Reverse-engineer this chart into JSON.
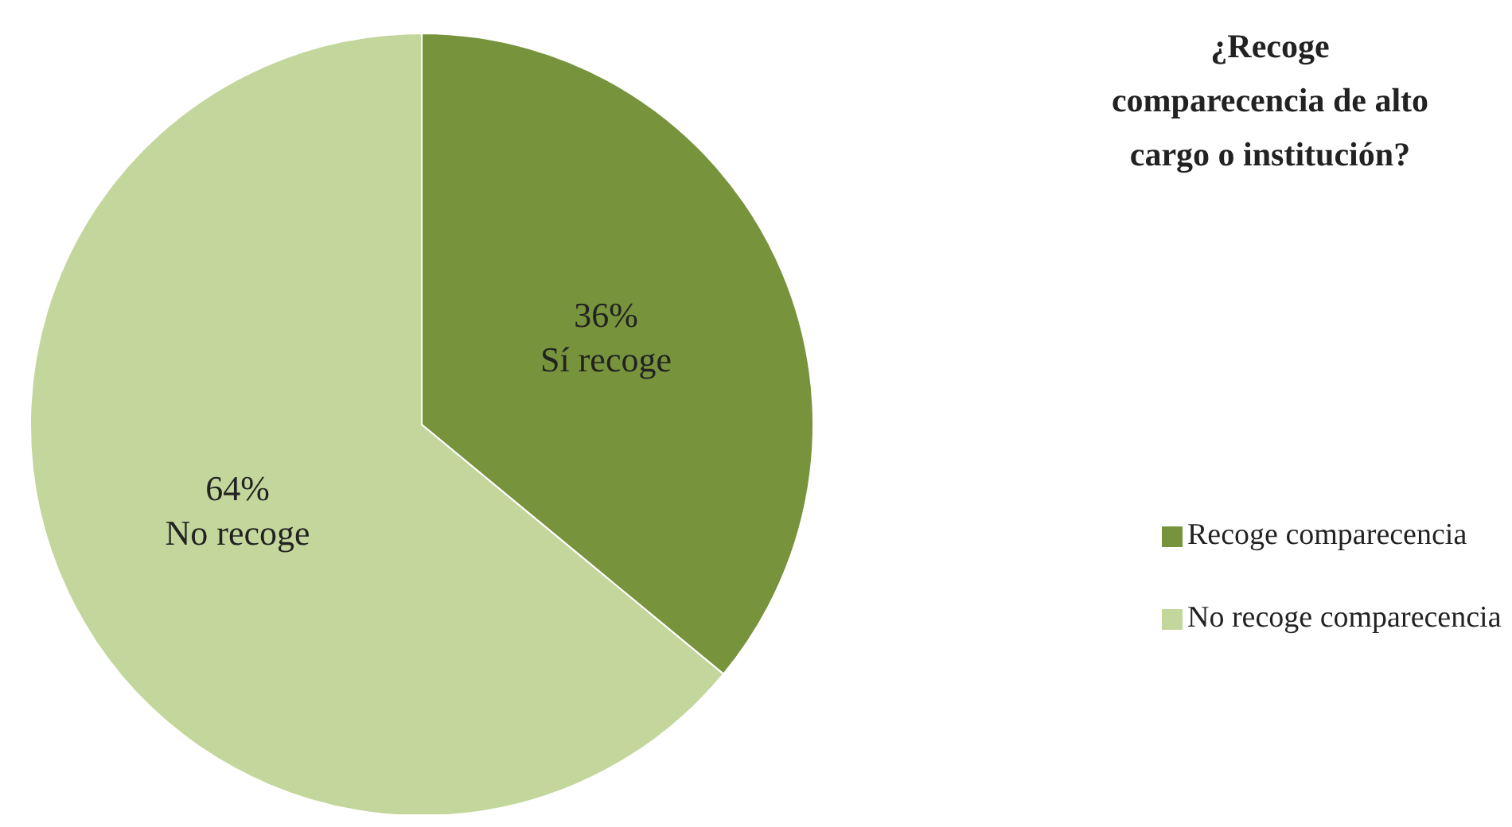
{
  "chart_data": {
    "type": "pie",
    "title": "¿Recoge comparecencia de alto cargo o institución?",
    "categories": [
      "Recoge comparecencia",
      "No recoge comparecencia"
    ],
    "values": [
      36,
      64
    ],
    "colors": [
      "#77933c",
      "#c3d69b"
    ],
    "value_labels": [
      "36%\nSí recoge",
      "64%\nNo recoge"
    ],
    "legend": "right"
  }
}
